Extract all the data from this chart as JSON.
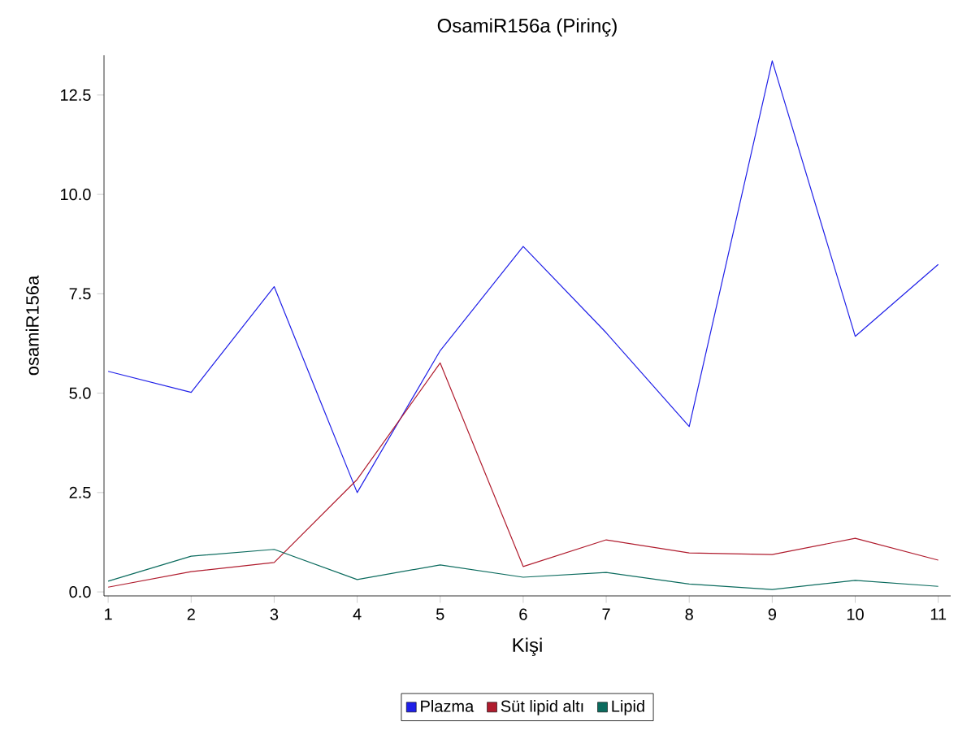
{
  "chart_data": {
    "type": "line",
    "title": "OsamiR156a (Pirinç)",
    "xlabel": "Kişi",
    "ylabel": "osamiR156a",
    "x": [
      1,
      2,
      3,
      4,
      5,
      6,
      7,
      8,
      9,
      10,
      11
    ],
    "series": [
      {
        "name": "Plazma",
        "color": "#2020e8",
        "values": [
          5.55,
          5.02,
          7.68,
          2.5,
          6.07,
          8.69,
          6.52,
          4.16,
          13.36,
          6.43,
          8.24
        ]
      },
      {
        "name": "Süt lipid altı",
        "color": "#b01c2e",
        "values": [
          0.12,
          0.51,
          0.74,
          2.83,
          5.76,
          0.64,
          1.31,
          0.98,
          0.94,
          1.35,
          0.8
        ]
      },
      {
        "name": "Lipid",
        "color": "#0b6b5e",
        "values": [
          0.27,
          0.9,
          1.07,
          0.31,
          0.68,
          0.37,
          0.49,
          0.2,
          0.06,
          0.29,
          0.14
        ]
      }
    ],
    "xlim": [
      0.95,
      11.15
    ],
    "ylim": [
      -0.1,
      13.5
    ],
    "xticks": [
      1,
      2,
      3,
      4,
      5,
      6,
      7,
      8,
      9,
      10,
      11
    ],
    "yticks": [
      {
        "value": 0,
        "label": "0.0"
      },
      {
        "value": 2.5,
        "label": "2.5"
      },
      {
        "value": 5,
        "label": "5.0"
      },
      {
        "value": 7.5,
        "label": "7.5"
      },
      {
        "value": 10,
        "label": "10.0"
      },
      {
        "value": 12.5,
        "label": "12.5"
      }
    ],
    "grid": false,
    "legend": "bottom",
    "marker": "none",
    "line_style": "solid"
  }
}
